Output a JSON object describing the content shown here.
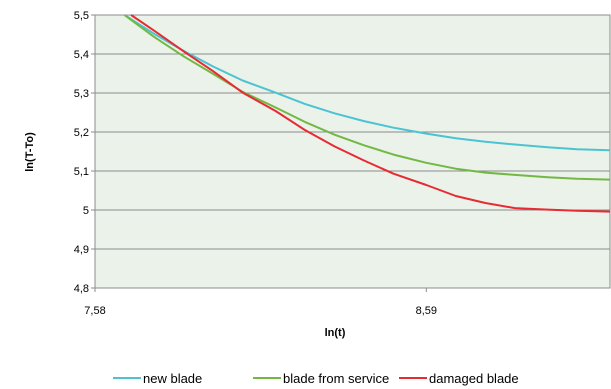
{
  "chart_data": {
    "type": "line",
    "xlabel": "ln(t)",
    "ylabel": "ln(T-To)",
    "xlim": [
      7.58,
      9.15
    ],
    "ylim": [
      4.8,
      5.5
    ],
    "x_ticks": [
      "7,58",
      "8,59"
    ],
    "x_tick_values": [
      7.58,
      8.59
    ],
    "y_ticks": [
      "4,8",
      "4,9",
      "5",
      "5,1",
      "5,2",
      "5,3",
      "5,4",
      "5,5"
    ],
    "y_tick_values": [
      4.8,
      4.9,
      5.0,
      5.1,
      5.2,
      5.3,
      5.4,
      5.5
    ],
    "grid": "horizontal",
    "legend_position": "bottom",
    "plot_background": "#eaf2ea",
    "series": [
      {
        "name": "new blade",
        "color": "#4bc3d2",
        "x": [
          7.67,
          7.76,
          7.85,
          7.94,
          8.03,
          8.13,
          8.22,
          8.31,
          8.4,
          8.49,
          8.59,
          8.68,
          8.77,
          8.86,
          8.96,
          9.05,
          9.15
        ],
        "y": [
          5.5,
          5.452,
          5.408,
          5.368,
          5.332,
          5.301,
          5.272,
          5.248,
          5.228,
          5.211,
          5.196,
          5.184,
          5.175,
          5.168,
          5.161,
          5.156,
          5.153
        ]
      },
      {
        "name": "blade from service",
        "color": "#72b843",
        "x": [
          7.67,
          7.76,
          7.85,
          7.94,
          8.03,
          8.13,
          8.22,
          8.31,
          8.4,
          8.49,
          8.59,
          8.68,
          8.77,
          8.86,
          8.96,
          9.05,
          9.15
        ],
        "y": [
          5.5,
          5.444,
          5.394,
          5.349,
          5.303,
          5.263,
          5.226,
          5.193,
          5.166,
          5.142,
          5.121,
          5.106,
          5.096,
          5.09,
          5.084,
          5.08,
          5.078
        ]
      },
      {
        "name": "damaged blade",
        "color": "#e82a32",
        "x": [
          7.69,
          7.76,
          7.85,
          7.94,
          8.03,
          8.13,
          8.22,
          8.31,
          8.4,
          8.49,
          8.59,
          8.68,
          8.77,
          8.86,
          8.96,
          9.05,
          9.15
        ],
        "y": [
          5.5,
          5.46,
          5.407,
          5.356,
          5.301,
          5.254,
          5.205,
          5.163,
          5.127,
          5.093,
          5.064,
          5.036,
          5.018,
          5.005,
          5.001,
          4.998,
          4.996
        ]
      }
    ]
  }
}
